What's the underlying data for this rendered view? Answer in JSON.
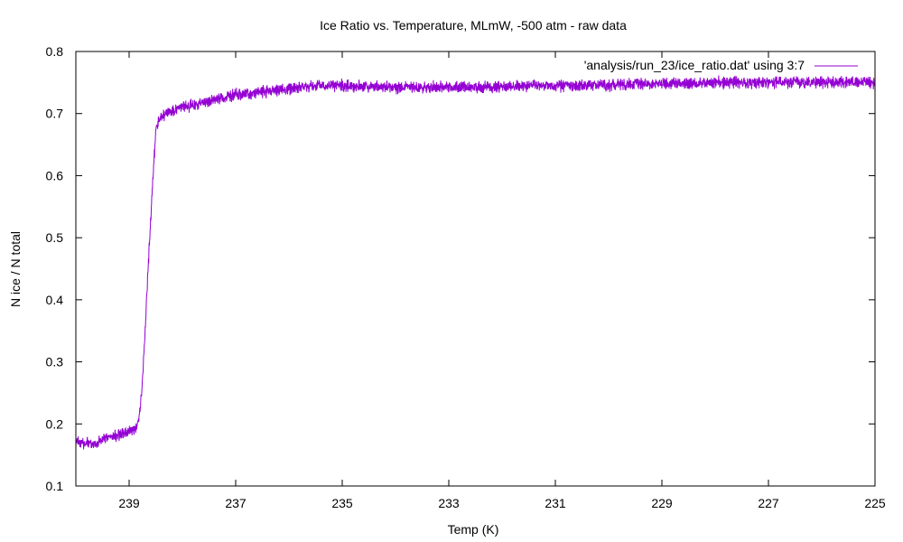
{
  "chart_data": {
    "type": "line",
    "title": "Ice Ratio vs. Temperature, MLmW, -500 atm - raw data",
    "xlabel": "Temp (K)",
    "ylabel": "N ice / N total",
    "xlim": [
      240,
      225
    ],
    "ylim": [
      0.1,
      0.8
    ],
    "x_reversed": true,
    "x_ticks": [
      239,
      237,
      235,
      233,
      231,
      229,
      227,
      225
    ],
    "x_tick_labels": [
      "239",
      "237",
      "235",
      "233",
      "231",
      "229",
      "227",
      "225"
    ],
    "y_ticks": [
      0.1,
      0.2,
      0.3,
      0.4,
      0.5,
      0.6,
      0.7,
      0.8
    ],
    "y_tick_labels": [
      "0.1",
      "0.2",
      "0.3",
      "0.4",
      "0.5",
      "0.6",
      "0.7",
      "0.8"
    ],
    "grid": false,
    "legend_position": "top-right",
    "series": [
      {
        "name": "'analysis/run_23/ice_ratio.dat' using 3:7",
        "color": "#9400d3",
        "noise_amplitude": 0.008,
        "points": [
          [
            240.0,
            0.17
          ],
          [
            239.7,
            0.168
          ],
          [
            239.4,
            0.178
          ],
          [
            239.1,
            0.185
          ],
          [
            238.95,
            0.19
          ],
          [
            238.85,
            0.195
          ],
          [
            238.8,
            0.22
          ],
          [
            238.75,
            0.27
          ],
          [
            238.7,
            0.35
          ],
          [
            238.65,
            0.44
          ],
          [
            238.6,
            0.52
          ],
          [
            238.55,
            0.6
          ],
          [
            238.5,
            0.67
          ],
          [
            238.45,
            0.69
          ],
          [
            238.3,
            0.7
          ],
          [
            238.0,
            0.71
          ],
          [
            237.5,
            0.72
          ],
          [
            237.0,
            0.73
          ],
          [
            236.5,
            0.735
          ],
          [
            236.0,
            0.74
          ],
          [
            235.5,
            0.745
          ],
          [
            235.0,
            0.745
          ],
          [
            234.0,
            0.742
          ],
          [
            233.0,
            0.742
          ],
          [
            232.0,
            0.743
          ],
          [
            231.0,
            0.745
          ],
          [
            230.0,
            0.746
          ],
          [
            229.0,
            0.748
          ],
          [
            228.0,
            0.75
          ],
          [
            227.0,
            0.75
          ],
          [
            226.0,
            0.75
          ],
          [
            225.0,
            0.75
          ]
        ]
      }
    ]
  }
}
